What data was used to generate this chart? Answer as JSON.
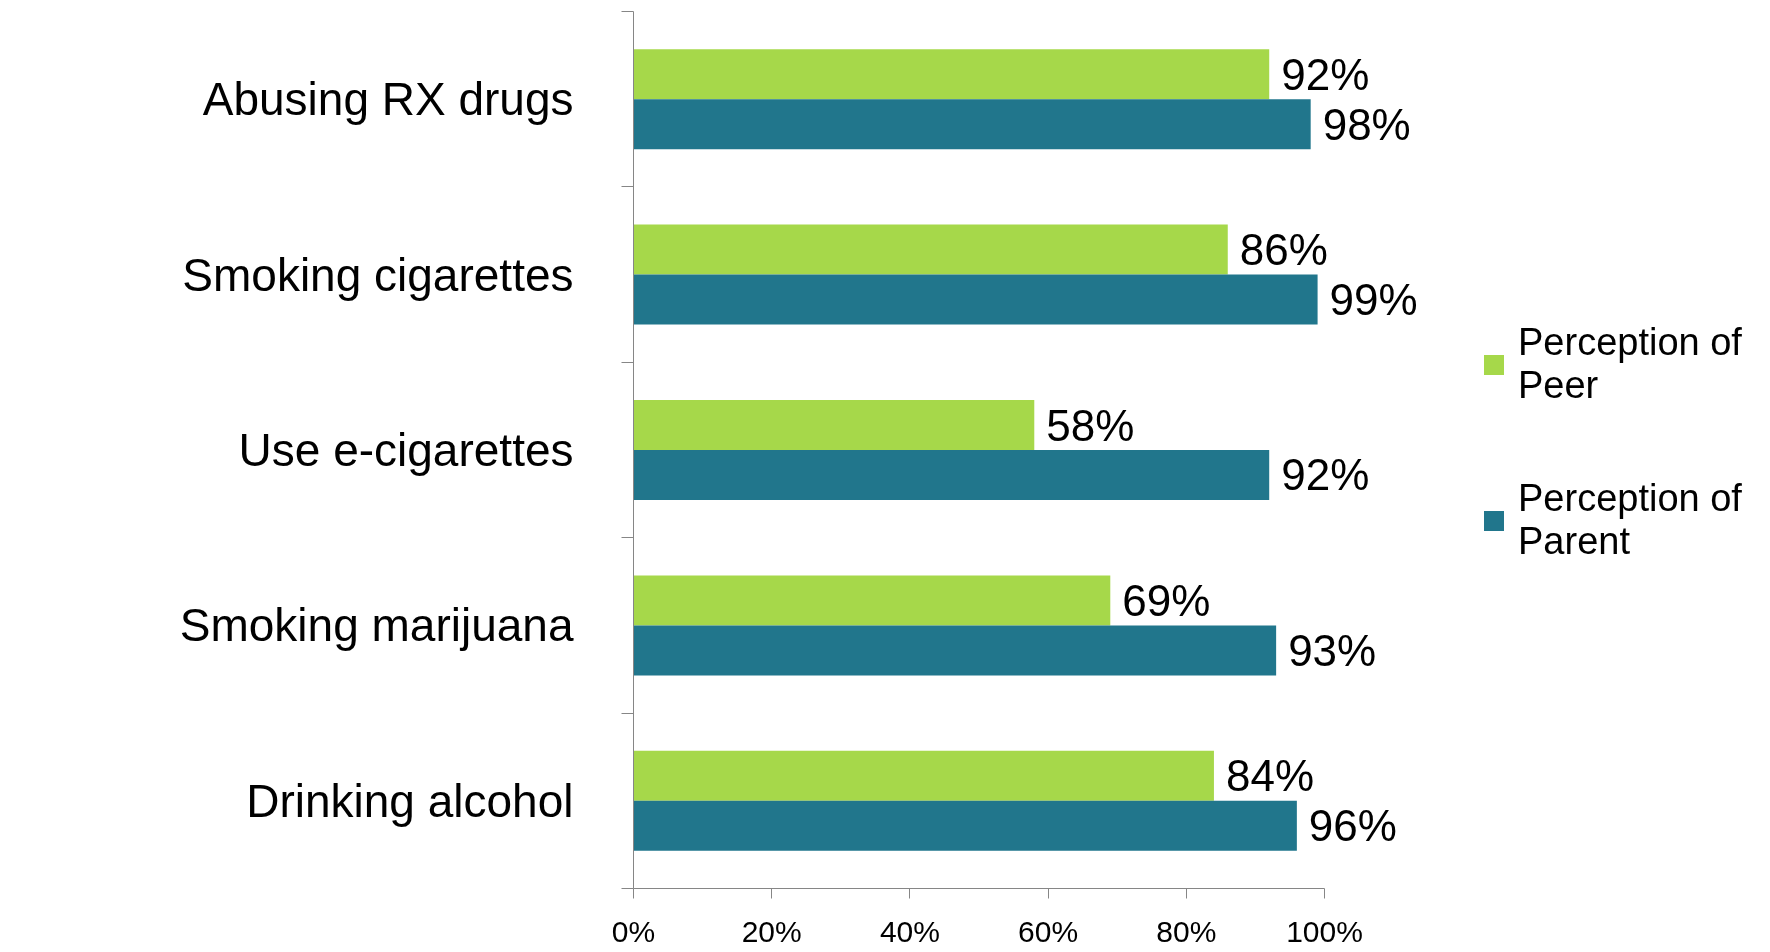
{
  "chart_data": {
    "type": "bar",
    "orientation": "horizontal",
    "categories": [
      "Abusing RX drugs",
      "Smoking cigarettes",
      "Use e-cigarettes",
      "Smoking marijuana",
      "Drinking alcohol"
    ],
    "series": [
      {
        "name": "Perception of Peer",
        "color": "#a6d84a",
        "values": [
          92,
          86,
          58,
          69,
          84
        ],
        "value_labels": [
          "92%",
          "86%",
          "58%",
          "69%",
          "84%"
        ]
      },
      {
        "name": "Perception of Parent",
        "color": "#21768c",
        "values": [
          98,
          99,
          92,
          93,
          96
        ],
        "value_labels": [
          "98%",
          "99%",
          "92%",
          "93%",
          "96%"
        ]
      }
    ],
    "xlim": [
      0,
      100
    ],
    "xticks": [
      {
        "value": 0,
        "label": "0%"
      },
      {
        "value": 20,
        "label": "20%"
      },
      {
        "value": 40,
        "label": "40%"
      },
      {
        "value": 60,
        "label": "60%"
      },
      {
        "value": 80,
        "label": "80%"
      },
      {
        "value": 100,
        "label": "100%"
      }
    ],
    "grid": false,
    "legend": "right"
  }
}
